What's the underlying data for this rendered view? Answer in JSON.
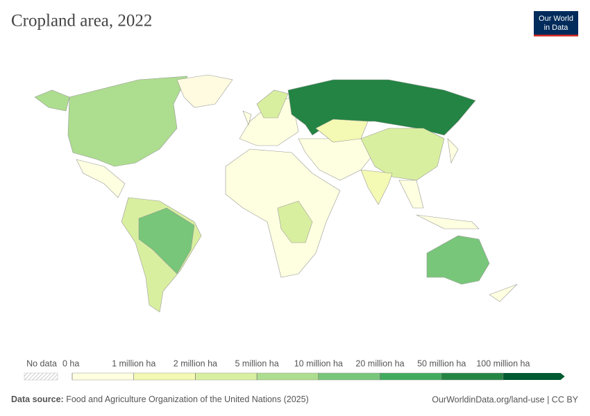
{
  "header": {
    "title": "Cropland area, 2022",
    "logo": [
      "Our World",
      "in Data"
    ]
  },
  "legend": {
    "no_data": "No data",
    "ticks": [
      {
        "value": 0,
        "label": "0 ha"
      },
      {
        "value": 1000000,
        "label": "1 million ha"
      },
      {
        "value": 2000000,
        "label": "2 million ha"
      },
      {
        "value": 5000000,
        "label": "5 million ha"
      },
      {
        "value": 10000000,
        "label": "10 million ha"
      },
      {
        "value": 20000000,
        "label": "20 million ha"
      },
      {
        "value": 50000000,
        "label": "50 million ha"
      },
      {
        "value": 100000000,
        "label": "100 million ha"
      }
    ],
    "colors": [
      "#fefee0",
      "#f4f9b3",
      "#d9efa0",
      "#addd8e",
      "#78c679",
      "#41ab5d",
      "#238443",
      "#005a32"
    ]
  },
  "footer": {
    "source_label": "Data source:",
    "source": "Food and Agriculture Organization of the United Nations (2025)",
    "url": "OurWorldinData.org/land-use | CC BY"
  }
}
